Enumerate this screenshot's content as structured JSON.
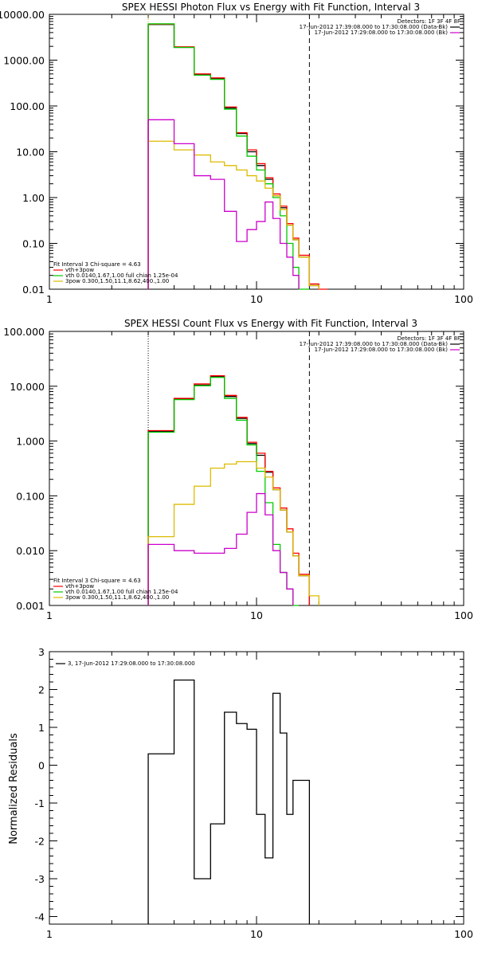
{
  "chart_data": [
    {
      "type": "line",
      "title": "SPEX HESSI Photon Flux vs Energy with Fit Function, Interval 3",
      "x_scale": "log",
      "y_scale": "log",
      "xlim": [
        1,
        100
      ],
      "ylim": [
        0.01,
        10000
      ],
      "x_ticks": [
        "1",
        "10",
        "100"
      ],
      "y_ticks": [
        "10000.00",
        "1000.00",
        "100.00",
        "10.00",
        "1.00",
        "0.10",
        "0.01"
      ],
      "detectors": "Detectors: 1F 3F 4F 8F",
      "legend_top": [
        {
          "text": "17-Jun-2012 17:39:08.000 to 17:30:08.000 (Data-Bk)",
          "color": "#000000"
        },
        {
          "text": "17-Jun-2012 17:29:08.000 to 17:30:08.000 (Bk)",
          "color": "#cc00cc"
        }
      ],
      "legend_bottom": [
        {
          "text": "Fit Interval 3   Chi-square = 4.63",
          "color": "#000000"
        },
        {
          "text": "vth+3pow",
          "color": "#ff0000"
        },
        {
          "text": "vth 0.0140,1.67,1.00  full chian 1.25e-04",
          "color": "#00cc00"
        },
        {
          "text": "3pow 0.300,1.50,11.1,8.62,400.,1.00",
          "color": "#ddbb00"
        }
      ],
      "vlines": [
        {
          "x": 3.0,
          "style": "dotted",
          "color": "#ddaa00"
        },
        {
          "x": 18.0,
          "style": "dashed",
          "color": "#000000"
        }
      ],
      "bin_edges": [
        3.0,
        4.0,
        5.0,
        6.0,
        7.0,
        8.0,
        9.0,
        10.0,
        11.0,
        12.0,
        13.0,
        14.0,
        15.0,
        16.0,
        18.0,
        20.0,
        22.0
      ],
      "series": [
        {
          "color": "#000000",
          "values": [
            6000,
            1900,
            480,
            390,
            90,
            25,
            10,
            5,
            2.5,
            1.1,
            0.6,
            0.25,
            0.12,
            0.05,
            0.012,
            null
          ]
        },
        {
          "color": "#ff0000",
          "values": [
            6100,
            1950,
            500,
            410,
            95,
            26,
            11,
            5.5,
            2.7,
            1.2,
            0.65,
            0.27,
            0.13,
            0.055,
            0.013,
            0.01
          ]
        },
        {
          "color": "#00cc00",
          "values": [
            6200,
            1900,
            470,
            380,
            85,
            22,
            8,
            4,
            2,
            1.0,
            0.4,
            0.1,
            0.03,
            0.01,
            null,
            null
          ]
        },
        {
          "color": "#ddbb00",
          "values": [
            17,
            11,
            8.5,
            6,
            5.0,
            4.0,
            3.0,
            2.3,
            1.6,
            1.1,
            0.55,
            0.25,
            0.12,
            0.05,
            0.012,
            null
          ]
        },
        {
          "color": "#cc00cc",
          "values": [
            50,
            15,
            3,
            2.5,
            0.5,
            0.11,
            0.2,
            0.3,
            0.8,
            0.35,
            0.1,
            0.05,
            0.02,
            null,
            null,
            null
          ]
        }
      ]
    },
    {
      "type": "line",
      "title": "SPEX HESSI Count Flux vs Energy with Fit Function, Interval 3",
      "x_scale": "log",
      "y_scale": "log",
      "xlim": [
        1,
        100
      ],
      "ylim": [
        0.001,
        100
      ],
      "x_ticks": [
        "1",
        "10",
        "100"
      ],
      "y_ticks": [
        "100.000",
        "10.000",
        "1.000",
        "0.100",
        "0.010",
        "0.001"
      ],
      "detectors": "Detectors: 1F 3F 4F 8F",
      "legend_top": [
        {
          "text": "17-Jun-2012 17:39:08.000 to 17:30:08.000 (Data-Bk)",
          "color": "#000000"
        },
        {
          "text": "17-Jun-2012 17:29:08.000 to 17:30:08.000 (Bk)",
          "color": "#cc00cc"
        }
      ],
      "legend_bottom": [
        {
          "text": "Fit Interval 3   Chi-square = 4.63",
          "color": "#000000"
        },
        {
          "text": "vth+3pow",
          "color": "#ff0000"
        },
        {
          "text": "vth 0.0140,1.67,1.00  full chian 1.25e-04",
          "color": "#00cc00"
        },
        {
          "text": "3pow 0.300,1.50,11.1,8.62,400.,1.00",
          "color": "#ddbb00"
        }
      ],
      "vlines": [
        {
          "x": 3.0,
          "style": "dotted",
          "color": "#000000"
        },
        {
          "x": 18.0,
          "style": "dashed",
          "color": "#000000"
        }
      ],
      "bin_edges": [
        3.0,
        4.0,
        5.0,
        6.0,
        7.0,
        8.0,
        9.0,
        10.0,
        11.0,
        12.0,
        13.0,
        14.0,
        15.0,
        16.0,
        18.0,
        20.0,
        22.0
      ],
      "series": [
        {
          "color": "#000000",
          "values": [
            1.5,
            5.8,
            10.5,
            15.0,
            6.5,
            2.6,
            0.9,
            0.55,
            0.27,
            0.13,
            0.055,
            0.022,
            0.008,
            0.0035,
            null,
            null
          ]
        },
        {
          "color": "#ff0000",
          "values": [
            1.55,
            6.0,
            11.0,
            15.5,
            6.8,
            2.7,
            0.95,
            0.6,
            0.28,
            0.14,
            0.06,
            0.025,
            0.009,
            0.0037,
            null,
            null
          ]
        },
        {
          "color": "#00cc00",
          "values": [
            1.45,
            5.7,
            10.2,
            14.5,
            6.0,
            2.4,
            0.85,
            0.28,
            0.075,
            0.013,
            0.004,
            0.002,
            0.0009,
            null,
            null,
            null
          ]
        },
        {
          "color": "#ddbb00",
          "values": [
            0.018,
            0.07,
            0.15,
            0.32,
            0.38,
            0.42,
            0.42,
            0.32,
            0.22,
            0.13,
            0.055,
            0.022,
            0.008,
            0.0035,
            0.0015,
            null
          ]
        },
        {
          "color": "#cc00cc",
          "values": [
            0.013,
            0.01,
            0.009,
            0.009,
            0.011,
            0.02,
            0.05,
            0.11,
            0.045,
            0.01,
            0.004,
            0.002,
            null,
            null,
            null,
            null
          ]
        }
      ]
    },
    {
      "type": "line",
      "title": "",
      "x_scale": "log",
      "xlim": [
        1,
        100
      ],
      "ylim": [
        -4.2,
        3
      ],
      "x_ticks": [
        "1",
        "10",
        "100"
      ],
      "y_ticks": [
        "3",
        "2",
        "1",
        "0",
        "-1",
        "-2",
        "-3",
        "-4"
      ],
      "ylabel": "Normalized Residuals",
      "legend": [
        {
          "text": "3, 17-Jun-2012 17:29:08.000 to 17:30:08.000",
          "color": "#000000"
        }
      ],
      "bin_edges": [
        3.0,
        4.0,
        4.5,
        5.0,
        6.0,
        7.0,
        8.0,
        9.0,
        10.0,
        11.0,
        12.0,
        13.0,
        14.0,
        15.0,
        16.0,
        18.0
      ],
      "series": [
        {
          "color": "#000000",
          "values": [
            0.3,
            2.25,
            2.25,
            -3.0,
            -1.55,
            1.4,
            1.1,
            0.95,
            -1.3,
            -2.45,
            1.9,
            0.85,
            -1.3,
            -0.4,
            -0.4
          ]
        }
      ]
    }
  ]
}
